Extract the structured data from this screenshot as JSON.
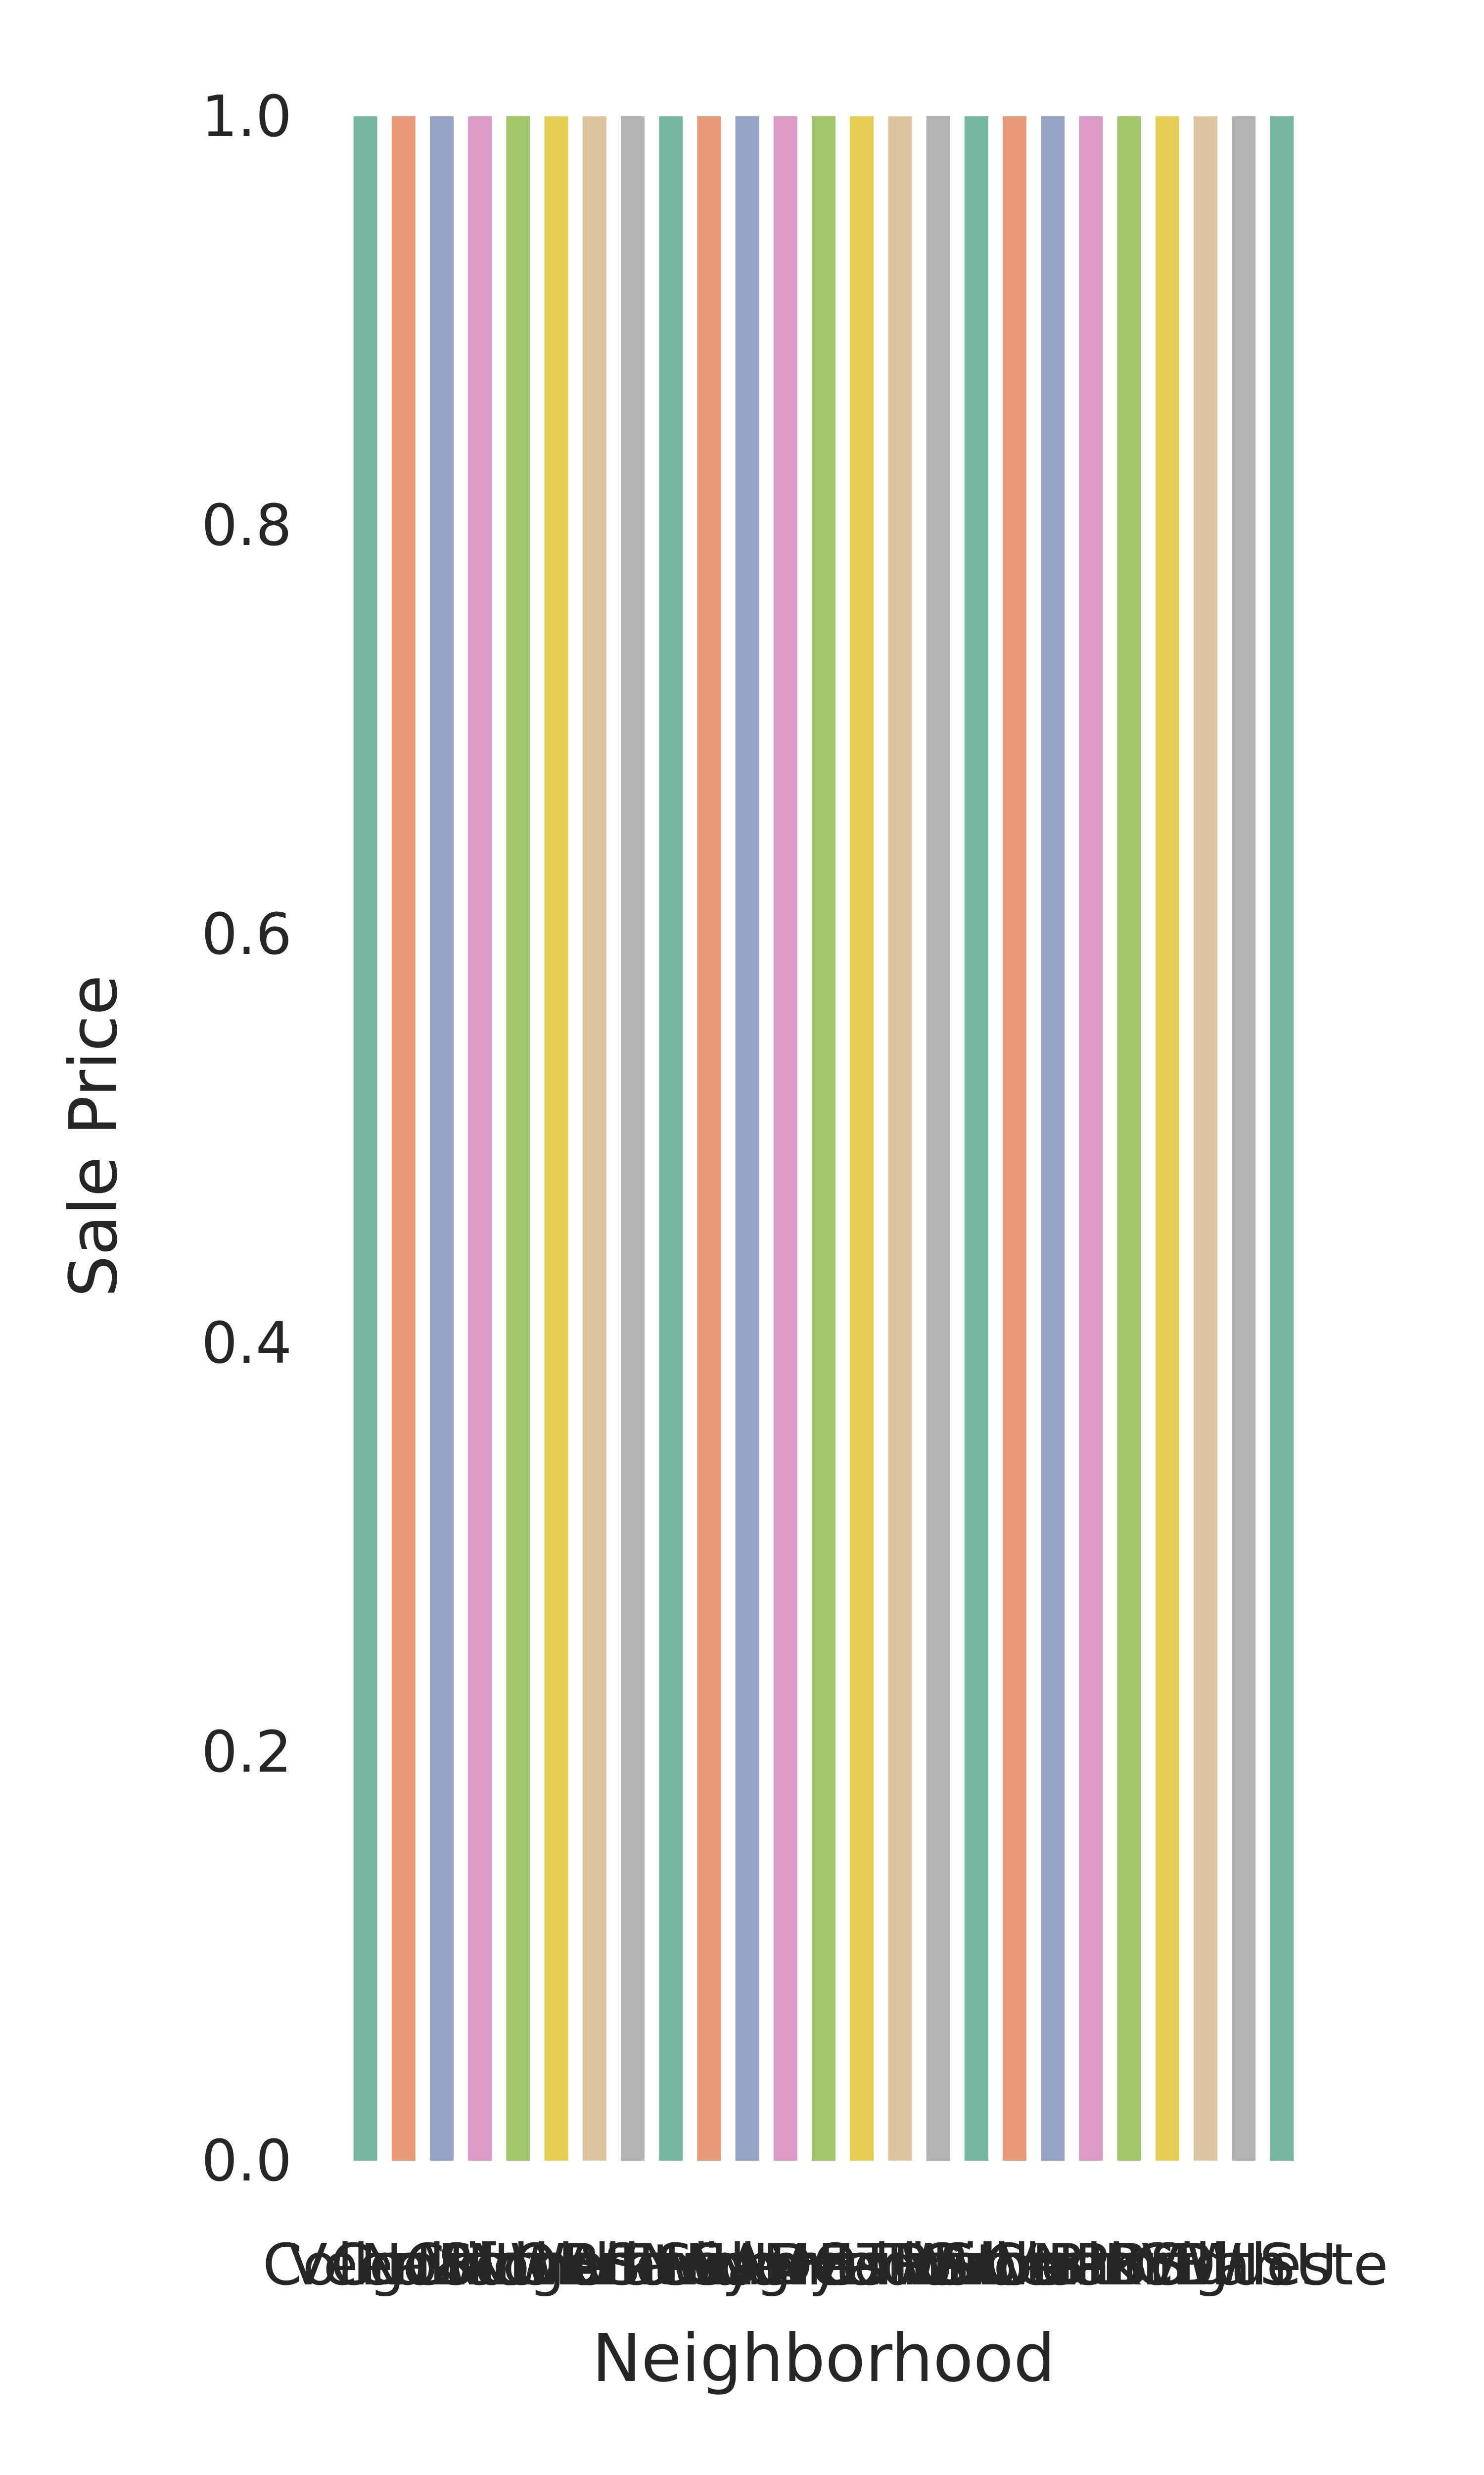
{
  "chart_data": {
    "type": "bar",
    "title": "",
    "xlabel": "Neighborhood",
    "ylabel": "Sale Price",
    "ylim": [
      0,
      1
    ],
    "yticks": [
      "0.0",
      "0.2",
      "0.4",
      "0.6",
      "0.8",
      "1.0"
    ],
    "grid": false,
    "categories": [
      "CollgCr",
      "Veenker",
      "Crawfor",
      "NoRidge",
      "Mitchel",
      "Somerst",
      "NWAmes",
      "OldTown",
      "BrkSide",
      "Sawyer",
      "NridgHt",
      "NAmes",
      "SawyerW",
      "IDOTRR",
      "MeadowV",
      "Edwards",
      "Timber",
      "Gilbert",
      "StoneBr",
      "ClearCr",
      "NPkVill",
      "Blmngtn",
      "BrDale",
      "SWISU",
      "Blueste"
    ],
    "values": [
      1,
      1,
      1,
      1,
      1,
      1,
      1,
      1,
      1,
      1,
      1,
      1,
      1,
      1,
      1,
      1,
      1,
      1,
      1,
      1,
      1,
      1,
      1,
      1,
      1
    ],
    "colors": [
      "#76b7a2",
      "#e89a78",
      "#97a4c5",
      "#dc9bc6",
      "#a2c66c",
      "#e4cd52",
      "#dcc59f",
      "#b3b3b3"
    ]
  }
}
